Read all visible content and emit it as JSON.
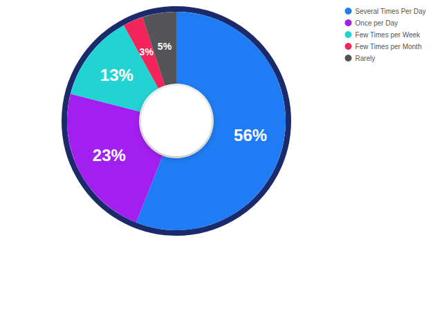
{
  "chart_data": {
    "type": "pie",
    "categories": [
      "Several Times Per Day",
      "Once per Day",
      "Few Times per Week",
      "Few Times per Month",
      "Rarely"
    ],
    "values": [
      56,
      23,
      13,
      3,
      5
    ],
    "value_labels": [
      "56%",
      "23%",
      "13%",
      "3%",
      "5%"
    ],
    "colors": [
      "#1f7cf4",
      "#a21ff0",
      "#22d3d3",
      "#f2245a",
      "#555558"
    ],
    "data_labels": true,
    "legend": "top-right"
  }
}
